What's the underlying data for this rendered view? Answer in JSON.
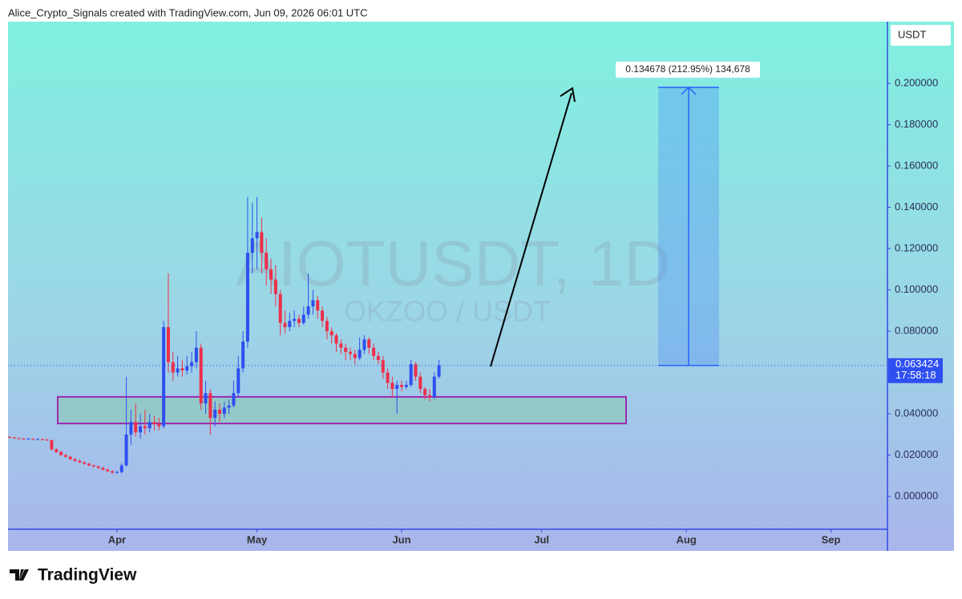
{
  "header": "Alice_Crypto_Signals created with TradingView.com, Jun 09, 2026 06:01 UTC",
  "footer_logo": "TradingView",
  "chart_data": {
    "type": "candlestick",
    "title": "AIOTUSDT, 1D",
    "subtitle": "OKZOO / USDT",
    "y_axis_label": "USDT",
    "countdown": "17:58:18",
    "up_color": "#2e4ff0",
    "down_color": "#ef2f4a",
    "candles": [
      [
        0.0288,
        0.0292,
        0.0282,
        0.0285
      ],
      [
        0.0285,
        0.0289,
        0.0279,
        0.0282
      ],
      [
        0.0282,
        0.0286,
        0.0277,
        0.028
      ],
      [
        0.028,
        0.0283,
        0.0275,
        0.0278
      ],
      [
        0.0278,
        0.0283,
        0.0275,
        0.0279
      ],
      [
        0.0279,
        0.0282,
        0.0273,
        0.0276
      ],
      [
        0.0276,
        0.0281,
        0.0273,
        0.0277
      ],
      [
        0.0277,
        0.028,
        0.0271,
        0.0275
      ],
      [
        0.0275,
        0.0279,
        0.0268,
        0.0272
      ],
      [
        0.0272,
        0.0275,
        0.0222,
        0.0228
      ],
      [
        0.0228,
        0.0234,
        0.021,
        0.0215
      ],
      [
        0.0215,
        0.022,
        0.0196,
        0.02
      ],
      [
        0.02,
        0.0206,
        0.0188,
        0.0192
      ],
      [
        0.0192,
        0.0197,
        0.0176,
        0.018
      ],
      [
        0.018,
        0.0186,
        0.0168,
        0.0172
      ],
      [
        0.0172,
        0.0178,
        0.0161,
        0.0165
      ],
      [
        0.0165,
        0.017,
        0.0154,
        0.0158
      ],
      [
        0.0158,
        0.0163,
        0.0146,
        0.015
      ],
      [
        0.015,
        0.0156,
        0.0141,
        0.0145
      ],
      [
        0.0145,
        0.015,
        0.0134,
        0.0138
      ],
      [
        0.0138,
        0.0143,
        0.0126,
        0.013
      ],
      [
        0.013,
        0.0135,
        0.0118,
        0.0122
      ],
      [
        0.0122,
        0.0127,
        0.011,
        0.0115
      ],
      [
        0.0115,
        0.0125,
        0.011,
        0.0118
      ],
      [
        0.0118,
        0.016,
        0.0112,
        0.015
      ],
      [
        0.015,
        0.058,
        0.0145,
        0.03
      ],
      [
        0.03,
        0.042,
        0.025,
        0.036
      ],
      [
        0.036,
        0.045,
        0.029,
        0.031
      ],
      [
        0.031,
        0.04,
        0.028,
        0.034
      ],
      [
        0.034,
        0.042,
        0.03,
        0.033
      ],
      [
        0.033,
        0.04,
        0.031,
        0.036
      ],
      [
        0.036,
        0.039,
        0.032,
        0.035
      ],
      [
        0.035,
        0.038,
        0.032,
        0.034
      ],
      [
        0.034,
        0.085,
        0.033,
        0.082
      ],
      [
        0.082,
        0.108,
        0.06,
        0.065
      ],
      [
        0.065,
        0.07,
        0.056,
        0.06
      ],
      [
        0.06,
        0.068,
        0.058,
        0.062
      ],
      [
        0.062,
        0.066,
        0.058,
        0.061
      ],
      [
        0.061,
        0.068,
        0.059,
        0.063
      ],
      [
        0.063,
        0.07,
        0.06,
        0.065
      ],
      [
        0.065,
        0.08,
        0.062,
        0.072
      ],
      [
        0.072,
        0.074,
        0.042,
        0.045
      ],
      [
        0.045,
        0.056,
        0.04,
        0.05
      ],
      [
        0.05,
        0.052,
        0.03,
        0.038
      ],
      [
        0.038,
        0.046,
        0.034,
        0.042
      ],
      [
        0.042,
        0.045,
        0.036,
        0.04
      ],
      [
        0.04,
        0.046,
        0.038,
        0.043
      ],
      [
        0.043,
        0.047,
        0.04,
        0.044
      ],
      [
        0.044,
        0.056,
        0.043,
        0.05
      ],
      [
        0.05,
        0.068,
        0.048,
        0.062
      ],
      [
        0.062,
        0.08,
        0.06,
        0.075
      ],
      [
        0.075,
        0.145,
        0.072,
        0.118
      ],
      [
        0.118,
        0.142,
        0.108,
        0.125
      ],
      [
        0.125,
        0.145,
        0.11,
        0.128
      ],
      [
        0.128,
        0.135,
        0.108,
        0.118
      ],
      [
        0.118,
        0.125,
        0.102,
        0.11
      ],
      [
        0.11,
        0.115,
        0.098,
        0.105
      ],
      [
        0.105,
        0.112,
        0.092,
        0.098
      ],
      [
        0.098,
        0.1,
        0.078,
        0.084
      ],
      [
        0.084,
        0.09,
        0.079,
        0.082
      ],
      [
        0.082,
        0.089,
        0.08,
        0.085
      ],
      [
        0.085,
        0.09,
        0.082,
        0.086
      ],
      [
        0.086,
        0.088,
        0.082,
        0.084
      ],
      [
        0.084,
        0.092,
        0.083,
        0.088
      ],
      [
        0.088,
        0.108,
        0.086,
        0.092
      ],
      [
        0.092,
        0.1,
        0.088,
        0.095
      ],
      [
        0.095,
        0.097,
        0.086,
        0.09
      ],
      [
        0.09,
        0.092,
        0.082,
        0.085
      ],
      [
        0.085,
        0.087,
        0.076,
        0.08
      ],
      [
        0.08,
        0.082,
        0.074,
        0.078
      ],
      [
        0.078,
        0.079,
        0.07,
        0.074
      ],
      [
        0.074,
        0.076,
        0.069,
        0.072
      ],
      [
        0.072,
        0.074,
        0.066,
        0.07
      ],
      [
        0.07,
        0.072,
        0.066,
        0.069
      ],
      [
        0.069,
        0.071,
        0.064,
        0.067
      ],
      [
        0.067,
        0.077,
        0.066,
        0.071
      ],
      [
        0.071,
        0.078,
        0.069,
        0.076
      ],
      [
        0.076,
        0.077,
        0.069,
        0.072
      ],
      [
        0.072,
        0.074,
        0.066,
        0.068
      ],
      [
        0.068,
        0.07,
        0.064,
        0.066
      ],
      [
        0.066,
        0.068,
        0.057,
        0.06
      ],
      [
        0.06,
        0.062,
        0.052,
        0.055
      ],
      [
        0.055,
        0.058,
        0.048,
        0.052
      ],
      [
        0.052,
        0.056,
        0.04,
        0.054
      ],
      [
        0.054,
        0.056,
        0.051,
        0.053
      ],
      [
        0.053,
        0.056,
        0.052,
        0.054
      ],
      [
        0.054,
        0.066,
        0.053,
        0.064
      ],
      [
        0.064,
        0.065,
        0.056,
        0.058
      ],
      [
        0.058,
        0.06,
        0.05,
        0.052
      ],
      [
        0.052,
        0.053,
        0.047,
        0.049
      ],
      [
        0.049,
        0.052,
        0.046,
        0.048
      ],
      [
        0.048,
        0.06,
        0.047,
        0.058
      ],
      [
        0.058,
        0.066,
        0.057,
        0.063424
      ]
    ],
    "xlim": [
      -0.35,
      188.1
    ],
    "xticks": [
      {
        "value": 23,
        "label": "Apr"
      },
      {
        "value": 53,
        "label": "May"
      },
      {
        "value": 84,
        "label": "Jun"
      },
      {
        "value": 114,
        "label": "Jul"
      },
      {
        "value": 145,
        "label": "Aug"
      },
      {
        "value": 176,
        "label": "Sep"
      }
    ],
    "ylim": [
      -0.0159,
      0.2299
    ],
    "yticks": [
      {
        "value": 0,
        "label": "0.000000"
      },
      {
        "value": 0.02,
        "label": "0.020000"
      },
      {
        "value": 0.04,
        "label": "0.040000"
      },
      {
        "value": 0.06,
        "label": "0.060000"
      },
      {
        "value": 0.08,
        "label": "0.080000"
      },
      {
        "value": 0.1,
        "label": "0.100000"
      },
      {
        "value": 0.12,
        "label": "0.120000"
      },
      {
        "value": 0.14,
        "label": "0.140000"
      },
      {
        "value": 0.16,
        "label": "0.160000"
      },
      {
        "value": 0.18,
        "label": "0.180000"
      },
      {
        "value": 0.2,
        "label": "0.200000"
      }
    ],
    "zones": [
      {
        "low": 0.0353,
        "high": 0.0482
      }
    ],
    "projection": {
      "change": 0.134678,
      "label": "0.134678 (212.95%) 134,678"
    }
  }
}
